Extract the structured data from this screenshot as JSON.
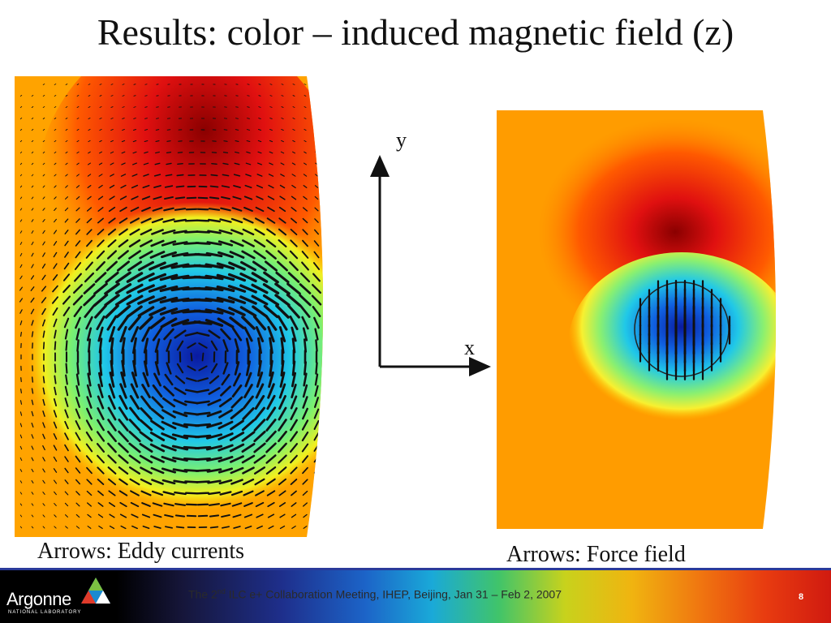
{
  "title": "Results: color – induced magnetic field (z)",
  "left_plot": {
    "caption": "Arrows: Eddy currents"
  },
  "right_plot": {
    "caption": "Arrows: Force field"
  },
  "axes": {
    "y_label": "y",
    "x_label": "x"
  },
  "footer": {
    "logo_text": "Argonne",
    "logo_subtext": "NATIONAL LABORATORY",
    "conference_prefix": "The 2",
    "conference_sup": "nd",
    "conference_suffix": " ILC e+ Collaboration Meeting, IHEP, Beijing, Jan 31 – Feb 2, 2007",
    "page_number": "8"
  },
  "colors": {
    "footer_text": "#2a2a2a",
    "title": "#111111"
  }
}
